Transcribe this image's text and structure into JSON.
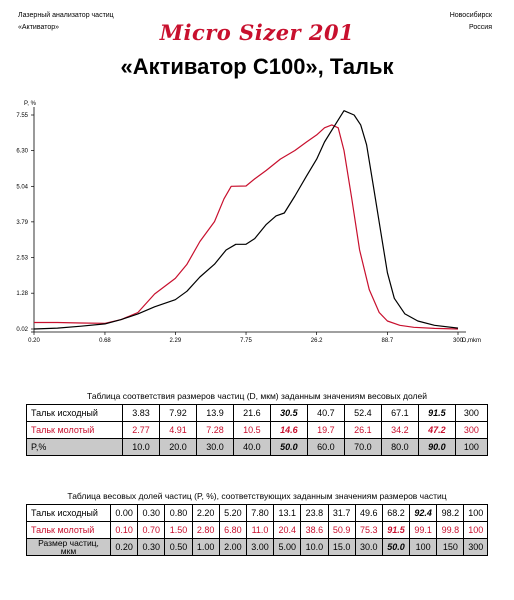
{
  "header": {
    "left_line1": "Лазерный анализатор частиц",
    "left_line2": "«Активатор»",
    "brand": "Micro Sizer 201",
    "right_line1": "Новосибирск",
    "right_line2": "Россия"
  },
  "title": "«Активатор С100», Тальк",
  "chart_data": {
    "type": "line",
    "ylabel": "P, %",
    "xlabel": "D,mkm",
    "x_scale": "log",
    "xlim": [
      0.2,
      300
    ],
    "ylim": [
      0.02,
      7.55
    ],
    "x_ticks": [
      "0.20",
      "0.68",
      "2.29",
      "7.75",
      "26.2",
      "88.7",
      "300"
    ],
    "y_ticks": [
      "0.02",
      "1.28",
      "2.53",
      "3.79",
      "5.04",
      "6.30",
      "7.55"
    ],
    "series": [
      {
        "color": "#c8102e",
        "x": [
          0.2,
          0.3,
          0.45,
          0.68,
          0.9,
          1.2,
          1.6,
          2.29,
          2.8,
          3.5,
          4.5,
          5.3,
          6.0,
          7.75,
          9.0,
          11.0,
          14.0,
          18.0,
          22.0,
          26.2,
          30.0,
          34.0,
          38.0,
          42.0,
          48.0,
          55.0,
          65.0,
          77.0,
          88.7,
          110.0,
          140.0,
          200.0,
          300.0
        ],
        "y": [
          0.25,
          0.25,
          0.23,
          0.22,
          0.35,
          0.6,
          1.25,
          1.8,
          2.3,
          3.1,
          3.8,
          4.6,
          5.04,
          5.05,
          5.3,
          5.6,
          6.0,
          6.3,
          6.6,
          6.85,
          7.1,
          7.2,
          7.1,
          6.3,
          4.6,
          2.8,
          1.4,
          0.6,
          0.3,
          0.15,
          0.08,
          0.04,
          0.02
        ]
      },
      {
        "color": "#000000",
        "x": [
          0.2,
          0.3,
          0.45,
          0.68,
          0.9,
          1.2,
          1.6,
          2.29,
          2.8,
          3.5,
          4.5,
          5.5,
          6.5,
          7.75,
          9.0,
          11.0,
          13.0,
          15.0,
          18.0,
          22.0,
          26.2,
          30.0,
          36.0,
          42.0,
          50.0,
          56.0,
          62.0,
          70.0,
          80.0,
          88.7,
          100.0,
          120.0,
          150.0,
          200.0,
          300.0
        ],
        "y": [
          0.02,
          0.05,
          0.12,
          0.2,
          0.35,
          0.55,
          0.8,
          1.05,
          1.35,
          1.85,
          2.3,
          2.8,
          3.0,
          3.0,
          3.2,
          3.7,
          4.0,
          4.1,
          4.7,
          5.4,
          6.0,
          6.6,
          7.2,
          7.7,
          7.55,
          7.2,
          6.5,
          5.0,
          3.3,
          2.0,
          1.1,
          0.55,
          0.3,
          0.15,
          0.05
        ]
      }
    ]
  },
  "table1": {
    "caption": "Таблица соответствия размеров частиц (D, мкм) заданным значениям весовых долей",
    "rows": [
      {
        "label": "Тальк исходный",
        "values": [
          "3.83",
          "7.92",
          "13.9",
          "21.6",
          "30.5",
          "40.7",
          "52.4",
          "67.1",
          "91.5",
          "300"
        ]
      },
      {
        "label": "Тальк молотый",
        "values": [
          "2.77",
          "4.91",
          "7.28",
          "10.5",
          "14.6",
          "19.7",
          "26.1",
          "34.2",
          "47.2",
          "300"
        ]
      },
      {
        "label": "P,%",
        "values": [
          "10.0",
          "20.0",
          "30.0",
          "40.0",
          "50.0",
          "60.0",
          "70.0",
          "80.0",
          "90.0",
          "100"
        ]
      }
    ]
  },
  "table2": {
    "caption": "Таблица весовых долей частиц (P, %), соответствующих заданным значениям размеров частиц",
    "rows": [
      {
        "label": "Тальк исходный",
        "values": [
          "0.00",
          "0.30",
          "0.80",
          "2.20",
          "5.20",
          "7.80",
          "13.1",
          "23.8",
          "31.7",
          "49.6",
          "68.2",
          "92.4",
          "98.2",
          "100"
        ]
      },
      {
        "label": "Тальк молотый",
        "values": [
          "0.10",
          "0.70",
          "1.50",
          "2.80",
          "6.80",
          "11.0",
          "20.4",
          "38.6",
          "50.9",
          "75.3",
          "91.5",
          "99.1",
          "99.8",
          "100"
        ]
      },
      {
        "label_line1": "Размер частиц,",
        "label_line2": "мкм",
        "values": [
          "0.20",
          "0.30",
          "0.50",
          "1.00",
          "2.00",
          "3.00",
          "5.00",
          "10.0",
          "15.0",
          "30.0",
          "50.0",
          "100",
          "150",
          "300"
        ]
      }
    ]
  }
}
